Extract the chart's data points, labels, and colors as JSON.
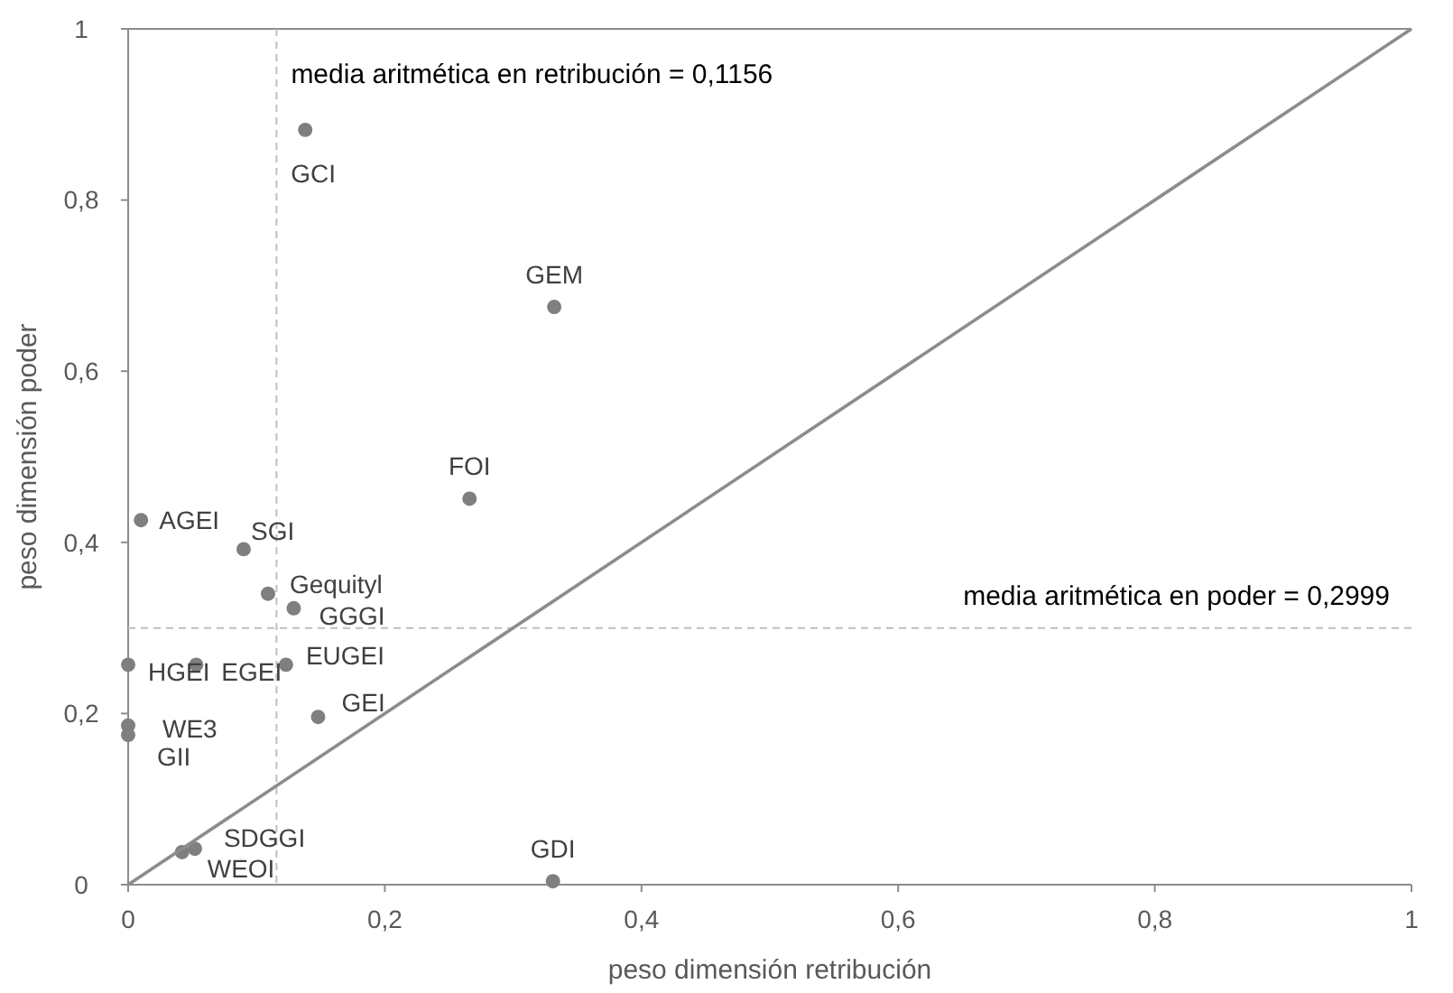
{
  "chart_data": {
    "type": "scatter",
    "xlabel": "peso dimensión retribución",
    "ylabel": "peso dimensión poder",
    "xlim": [
      0,
      1
    ],
    "ylim": [
      0,
      1
    ],
    "xticks": [
      0,
      {
        "value": 0.2,
        "label": "0,2"
      },
      {
        "value": 0.4,
        "label": "0,4"
      },
      {
        "value": 0.6,
        "label": "0,6"
      },
      {
        "value": 0.8,
        "label": "0,8"
      },
      1
    ],
    "yticks": [
      0,
      {
        "value": 0.2,
        "label": "0,2"
      },
      {
        "value": 0.4,
        "label": "0,4"
      },
      {
        "value": 0.6,
        "label": "0,6"
      },
      {
        "value": 0.8,
        "label": "0,8"
      },
      1
    ],
    "grid": false,
    "marker": "circle",
    "series": [
      {
        "color": "#7f7f7f",
        "x": [
          0.138,
          0.332,
          0.266,
          0.01,
          0.09,
          0.109,
          0.129,
          0,
          0.053,
          0.123,
          0.148,
          0,
          0,
          0.052,
          0.042,
          0.331
        ],
        "values": [
          0.882,
          0.675,
          0.451,
          0.426,
          0.392,
          0.34,
          0.323,
          0.257,
          0.257,
          0.257,
          0.196,
          0.186,
          0.175,
          0.042,
          0.038,
          0.004
        ]
      },
      {
        "type": "line",
        "color": "#8c8c8c",
        "x": [
          0,
          1
        ],
        "values": [
          0,
          1
        ],
        "line_style": "solid",
        "marker": "none"
      }
    ],
    "ref_lines": [
      {
        "axis": "x",
        "value": 0.1156,
        "label": "media aritmética en retribución = 0,1156",
        "color": "#bfbfbf",
        "line_style": "dashed"
      },
      {
        "axis": "y",
        "value": 0.2999,
        "label": "media aritmética en poder = 0,2999",
        "color": "#bfbfbf",
        "line_style": "dashed"
      }
    ],
    "annotations": [
      {
        "text": "GCI",
        "x": 0.138,
        "y": 0.882
      },
      {
        "text": "GEM",
        "x": 0.332,
        "y": 0.675
      },
      {
        "text": "FOI",
        "x": 0.266,
        "y": 0.451
      },
      {
        "text": "AGEI",
        "x": 0.01,
        "y": 0.426
      },
      {
        "text": "SGI",
        "x": 0.09,
        "y": 0.392
      },
      {
        "text": "Gequityl",
        "x": 0.109,
        "y": 0.34
      },
      {
        "text": "GGGI",
        "x": 0.129,
        "y": 0.323
      },
      {
        "text": "HGEI",
        "x": 0,
        "y": 0.257
      },
      {
        "text": "EGEI",
        "x": 0.053,
        "y": 0.257
      },
      {
        "text": "EUGEI",
        "x": 0.123,
        "y": 0.257
      },
      {
        "text": "GEI",
        "x": 0.148,
        "y": 0.196
      },
      {
        "text": "WE3",
        "x": 0,
        "y": 0.186
      },
      {
        "text": "GII",
        "x": 0,
        "y": 0.175
      },
      {
        "text": "SDGGI",
        "x": 0.052,
        "y": 0.042
      },
      {
        "text": "WEOI",
        "x": 0.042,
        "y": 0.038
      },
      {
        "text": "GDI",
        "x": 0.331,
        "y": 0.004
      }
    ]
  }
}
